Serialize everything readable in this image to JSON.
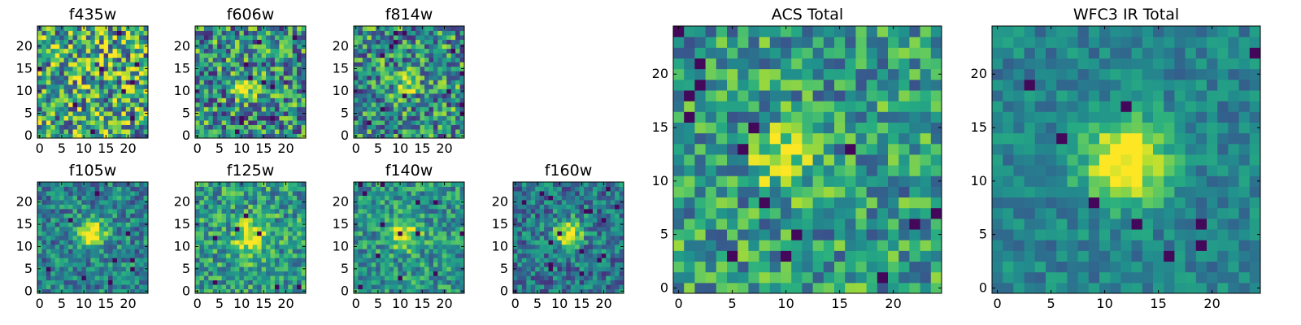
{
  "chart_data": {
    "type": "heatmap",
    "colormap": "viridis",
    "grid_size": 25,
    "panels": [
      {
        "title": "f435w",
        "xticks": [
          0,
          5,
          10,
          15,
          20
        ],
        "yticks": [
          0,
          5,
          10,
          15,
          20
        ],
        "source": {
          "x": 10,
          "y": 10,
          "strength": 0.05,
          "radius": 2.0
        },
        "noise": 0.45,
        "base": 0.6
      },
      {
        "title": "f606w",
        "xticks": [
          0,
          5,
          10,
          15,
          20
        ],
        "yticks": [
          0,
          5,
          10,
          15,
          20
        ],
        "source": {
          "x": 11,
          "y": 11,
          "strength": 0.35,
          "radius": 1.6
        },
        "noise": 0.4,
        "base": 0.5
      },
      {
        "title": "f814w",
        "xticks": [
          0,
          5,
          10,
          15,
          20
        ],
        "yticks": [
          0,
          5,
          10,
          15,
          20
        ],
        "source": {
          "x": 11,
          "y": 11,
          "strength": 0.45,
          "radius": 1.7
        },
        "noise": 0.38,
        "base": 0.5
      },
      {
        "title": "f105w",
        "xticks": [
          0,
          5,
          10,
          15,
          20
        ],
        "yticks": [
          0,
          5,
          10,
          15,
          20
        ],
        "source": {
          "x": 12,
          "y": 13,
          "strength": 0.55,
          "radius": 2.3
        },
        "noise": 0.25,
        "base": 0.45
      },
      {
        "title": "f125w",
        "xticks": [
          0,
          5,
          10,
          15,
          20
        ],
        "yticks": [
          0,
          5,
          10,
          15,
          20
        ],
        "source": {
          "x": 12,
          "y": 12,
          "strength": 0.5,
          "radius": 2.6
        },
        "noise": 0.28,
        "base": 0.55
      },
      {
        "title": "f140w",
        "xticks": [
          0,
          5,
          10,
          15,
          20
        ],
        "yticks": [
          0,
          5,
          10,
          15,
          20
        ],
        "source": {
          "x": 11,
          "y": 13,
          "strength": 0.5,
          "radius": 2.4
        },
        "noise": 0.25,
        "base": 0.52
      },
      {
        "title": "f160w",
        "xticks": [
          0,
          5,
          10,
          15,
          20
        ],
        "yticks": [
          0,
          5,
          10,
          15,
          20
        ],
        "source": {
          "x": 12,
          "y": 13,
          "strength": 0.6,
          "radius": 2.2
        },
        "noise": 0.25,
        "base": 0.4
      },
      {
        "title": "ACS Total",
        "xticks": [
          0,
          5,
          10,
          15,
          20
        ],
        "yticks": [
          0,
          5,
          10,
          15,
          20
        ],
        "source": {
          "x": 10,
          "y": 12,
          "strength": 0.4,
          "radius": 2.0
        },
        "noise": 0.3,
        "base": 0.55
      },
      {
        "title": "WFC3 IR Total",
        "xticks": [
          0,
          5,
          10,
          15,
          20
        ],
        "yticks": [
          0,
          5,
          10,
          15,
          20
        ],
        "source": {
          "x": 12,
          "y": 12,
          "strength": 0.65,
          "radius": 2.8
        },
        "noise": 0.15,
        "base": 0.45
      }
    ]
  }
}
